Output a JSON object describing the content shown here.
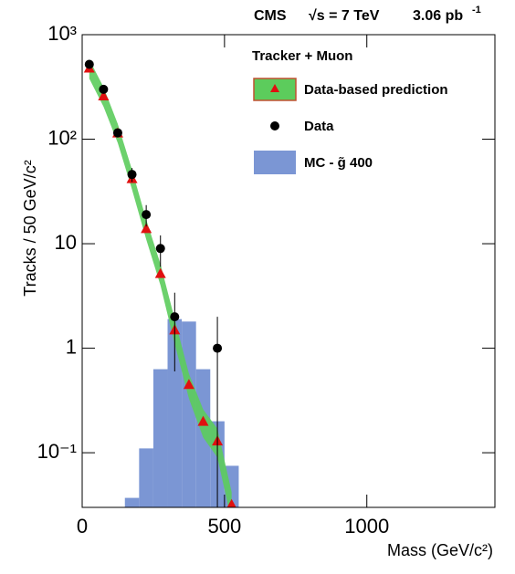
{
  "chart_data": {
    "type": "physics-hist",
    "title": "CMS",
    "subtitle": "√s = 7 TeV",
    "luminosity": "3.06 pb",
    "luminosity_exponent": "-1",
    "x_label": "Mass (GeV/c²)",
    "y_label": "Tracks / 50 GeV/c²",
    "legend_header": "Tracker + Muon",
    "log_y": true,
    "xlim": [
      0,
      1450
    ],
    "ylim": [
      0.03,
      1000
    ],
    "xticks": [
      0,
      500,
      1000
    ],
    "yticks": [
      {
        "value": 0.1,
        "label": "10⁻¹"
      },
      1,
      10,
      {
        "value": 100,
        "label": "10²"
      },
      {
        "value": 1000,
        "label": "10³"
      }
    ],
    "histogram": {
      "name": "MC - g̃ 400",
      "color": "#7b96d4",
      "bins": [
        150,
        200,
        250,
        300,
        350,
        400,
        450,
        500,
        550
      ],
      "values": [
        0.037,
        0.11,
        0.63,
        1.9,
        1.8,
        0.63,
        0.2,
        0.075
      ]
    },
    "prediction": {
      "name": "Data-based prediction",
      "color": "#e01010",
      "band_color": "#5ccc5c",
      "x": [
        25,
        75,
        125,
        175,
        225,
        275,
        325,
        375,
        425,
        475,
        525
      ],
      "values": [
        480,
        260,
        115,
        42,
        14,
        5.2,
        1.5,
        0.45,
        0.2,
        0.13,
        0.032
      ],
      "band_low": [
        380,
        205,
        92,
        33,
        11,
        4.0,
        1.1,
        0.33,
        0.14,
        0.09,
        0.022
      ],
      "band_high": [
        580,
        315,
        140,
        51,
        17,
        6.4,
        1.9,
        0.57,
        0.26,
        0.17,
        0.042
      ]
    },
    "data": {
      "name": "Data",
      "color": "#000000",
      "x": [
        25,
        75,
        125,
        175,
        225,
        275,
        325,
        475
      ],
      "values": [
        520,
        300,
        115,
        46,
        19,
        9,
        2,
        1
      ],
      "errors": [
        23,
        17,
        11,
        7,
        4.4,
        3,
        1.4,
        1
      ]
    }
  }
}
